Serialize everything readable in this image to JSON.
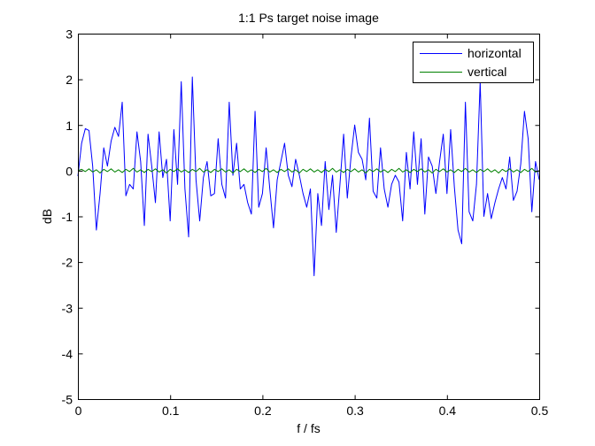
{
  "chart_data": {
    "type": "line",
    "title": "1:1 Ps target noise image",
    "xlabel": "f / fs",
    "ylabel": "dB",
    "xlim": [
      0,
      0.5
    ],
    "ylim": [
      -5,
      3
    ],
    "xticks": [
      0,
      0.1,
      0.2,
      0.3,
      0.4,
      0.5
    ],
    "yticks": [
      -5,
      -4,
      -3,
      -2,
      -1,
      0,
      1,
      2,
      3
    ],
    "xtick_labels": [
      "0",
      "0.1",
      "0.2",
      "0.3",
      "0.4",
      "0.5"
    ],
    "ytick_labels": [
      "-5",
      "-4",
      "-3",
      "-2",
      "-1",
      "0",
      "1",
      "2",
      "3"
    ],
    "grid": false,
    "legend_position": "top-right",
    "series": [
      {
        "name": "horizontal",
        "color": "#0000ff",
        "points": [
          [
            0.0,
            -0.12
          ],
          [
            0.004,
            0.6
          ],
          [
            0.008,
            0.92
          ],
          [
            0.012,
            0.88
          ],
          [
            0.016,
            0.1
          ],
          [
            0.02,
            -1.3
          ],
          [
            0.024,
            -0.5
          ],
          [
            0.028,
            0.5
          ],
          [
            0.032,
            0.1
          ],
          [
            0.036,
            0.65
          ],
          [
            0.04,
            0.95
          ],
          [
            0.044,
            0.75
          ],
          [
            0.048,
            1.5
          ],
          [
            0.052,
            -0.55
          ],
          [
            0.056,
            -0.3
          ],
          [
            0.06,
            -0.4
          ],
          [
            0.064,
            0.85
          ],
          [
            0.068,
            0.2
          ],
          [
            0.072,
            -1.2
          ],
          [
            0.076,
            0.8
          ],
          [
            0.08,
            0.1
          ],
          [
            0.084,
            -0.7
          ],
          [
            0.088,
            0.85
          ],
          [
            0.092,
            -0.15
          ],
          [
            0.096,
            0.25
          ],
          [
            0.1,
            -1.1
          ],
          [
            0.104,
            0.9
          ],
          [
            0.108,
            -0.3
          ],
          [
            0.112,
            1.95
          ],
          [
            0.116,
            -0.4
          ],
          [
            0.12,
            -1.45
          ],
          [
            0.124,
            2.05
          ],
          [
            0.128,
            -0.2
          ],
          [
            0.132,
            -1.1
          ],
          [
            0.136,
            -0.15
          ],
          [
            0.14,
            0.2
          ],
          [
            0.144,
            -0.55
          ],
          [
            0.148,
            -0.5
          ],
          [
            0.152,
            0.7
          ],
          [
            0.156,
            -0.3
          ],
          [
            0.16,
            -0.6
          ],
          [
            0.164,
            1.5
          ],
          [
            0.168,
            -0.1
          ],
          [
            0.172,
            0.6
          ],
          [
            0.176,
            -0.4
          ],
          [
            0.18,
            -0.3
          ],
          [
            0.184,
            -0.7
          ],
          [
            0.188,
            -0.95
          ],
          [
            0.192,
            1.3
          ],
          [
            0.196,
            -0.8
          ],
          [
            0.2,
            -0.5
          ],
          [
            0.204,
            0.5
          ],
          [
            0.208,
            -0.4
          ],
          [
            0.212,
            -1.25
          ],
          [
            0.216,
            -0.2
          ],
          [
            0.22,
            0.2
          ],
          [
            0.224,
            0.6
          ],
          [
            0.228,
            -0.1
          ],
          [
            0.232,
            -0.35
          ],
          [
            0.236,
            0.25
          ],
          [
            0.24,
            -0.1
          ],
          [
            0.244,
            -0.5
          ],
          [
            0.248,
            -0.8
          ],
          [
            0.252,
            -0.4
          ],
          [
            0.256,
            -2.3
          ],
          [
            0.26,
            -0.5
          ],
          [
            0.264,
            -1.2
          ],
          [
            0.268,
            0.2
          ],
          [
            0.272,
            -0.85
          ],
          [
            0.276,
            -0.1
          ],
          [
            0.28,
            -1.35
          ],
          [
            0.284,
            -0.3
          ],
          [
            0.288,
            0.8
          ],
          [
            0.292,
            -0.6
          ],
          [
            0.296,
            0.3
          ],
          [
            0.3,
            1.0
          ],
          [
            0.304,
            0.4
          ],
          [
            0.308,
            0.25
          ],
          [
            0.312,
            -0.2
          ],
          [
            0.316,
            1.15
          ],
          [
            0.32,
            -0.45
          ],
          [
            0.324,
            -0.6
          ],
          [
            0.328,
            0.5
          ],
          [
            0.332,
            -0.4
          ],
          [
            0.336,
            -0.8
          ],
          [
            0.34,
            -0.3
          ],
          [
            0.344,
            -0.1
          ],
          [
            0.348,
            -0.25
          ],
          [
            0.352,
            -1.1
          ],
          [
            0.356,
            0.4
          ],
          [
            0.36,
            -0.4
          ],
          [
            0.364,
            0.85
          ],
          [
            0.368,
            -0.3
          ],
          [
            0.372,
            0.7
          ],
          [
            0.376,
            -0.95
          ],
          [
            0.38,
            0.3
          ],
          [
            0.384,
            0.1
          ],
          [
            0.388,
            -0.5
          ],
          [
            0.392,
            0.2
          ],
          [
            0.396,
            0.8
          ],
          [
            0.4,
            -0.5
          ],
          [
            0.404,
            0.9
          ],
          [
            0.408,
            -0.35
          ],
          [
            0.412,
            -1.3
          ],
          [
            0.416,
            -1.6
          ],
          [
            0.42,
            1.5
          ],
          [
            0.424,
            -0.9
          ],
          [
            0.428,
            -1.1
          ],
          [
            0.432,
            -0.3
          ],
          [
            0.436,
            1.95
          ],
          [
            0.44,
            -1.0
          ],
          [
            0.444,
            -0.5
          ],
          [
            0.448,
            -1.05
          ],
          [
            0.452,
            -0.7
          ],
          [
            0.456,
            -0.4
          ],
          [
            0.46,
            -0.15
          ],
          [
            0.464,
            -0.4
          ],
          [
            0.468,
            0.3
          ],
          [
            0.472,
            -0.65
          ],
          [
            0.476,
            -0.45
          ],
          [
            0.48,
            0.15
          ],
          [
            0.484,
            1.3
          ],
          [
            0.488,
            0.7
          ],
          [
            0.492,
            -0.9
          ],
          [
            0.496,
            0.2
          ],
          [
            0.5,
            -0.2
          ]
        ]
      },
      {
        "name": "vertical",
        "color": "#008000",
        "points": [
          [
            0.0,
            0.0
          ],
          [
            0.004,
            0.03
          ],
          [
            0.008,
            -0.02
          ],
          [
            0.012,
            0.04
          ],
          [
            0.016,
            -0.03
          ],
          [
            0.02,
            0.02
          ],
          [
            0.024,
            -0.05
          ],
          [
            0.028,
            0.03
          ],
          [
            0.032,
            -0.02
          ],
          [
            0.036,
            0.04
          ],
          [
            0.04,
            -0.03
          ],
          [
            0.044,
            0.02
          ],
          [
            0.048,
            -0.04
          ],
          [
            0.052,
            0.03
          ],
          [
            0.056,
            -0.02
          ],
          [
            0.06,
            0.05
          ],
          [
            0.064,
            -0.03
          ],
          [
            0.068,
            0.02
          ],
          [
            0.072,
            -0.04
          ],
          [
            0.076,
            0.03
          ],
          [
            0.08,
            -0.02
          ],
          [
            0.084,
            0.04
          ],
          [
            0.088,
            -0.03
          ],
          [
            0.092,
            0.02
          ],
          [
            0.096,
            -0.05
          ],
          [
            0.1,
            0.03
          ],
          [
            0.104,
            -0.02
          ],
          [
            0.108,
            0.04
          ],
          [
            0.112,
            -0.03
          ],
          [
            0.116,
            0.02
          ],
          [
            0.12,
            -0.04
          ],
          [
            0.124,
            0.03
          ],
          [
            0.128,
            -0.02
          ],
          [
            0.132,
            0.05
          ],
          [
            0.136,
            -0.03
          ],
          [
            0.14,
            0.02
          ],
          [
            0.144,
            -0.04
          ],
          [
            0.148,
            0.03
          ],
          [
            0.152,
            -0.02
          ],
          [
            0.156,
            0.04
          ],
          [
            0.16,
            -0.03
          ],
          [
            0.164,
            0.02
          ],
          [
            0.168,
            -0.05
          ],
          [
            0.172,
            0.03
          ],
          [
            0.176,
            -0.02
          ],
          [
            0.18,
            0.04
          ],
          [
            0.184,
            -0.03
          ],
          [
            0.188,
            0.02
          ],
          [
            0.192,
            -0.04
          ],
          [
            0.196,
            0.03
          ],
          [
            0.2,
            -0.02
          ],
          [
            0.204,
            0.05
          ],
          [
            0.208,
            -0.03
          ],
          [
            0.212,
            0.02
          ],
          [
            0.216,
            -0.04
          ],
          [
            0.22,
            0.03
          ],
          [
            0.224,
            -0.02
          ],
          [
            0.228,
            0.04
          ],
          [
            0.232,
            -0.03
          ],
          [
            0.236,
            0.02
          ],
          [
            0.24,
            -0.05
          ],
          [
            0.244,
            0.03
          ],
          [
            0.248,
            -0.02
          ],
          [
            0.252,
            0.04
          ],
          [
            0.256,
            -0.03
          ],
          [
            0.26,
            0.02
          ],
          [
            0.264,
            -0.04
          ],
          [
            0.268,
            0.03
          ],
          [
            0.272,
            -0.02
          ],
          [
            0.276,
            0.05
          ],
          [
            0.28,
            -0.03
          ],
          [
            0.284,
            0.02
          ],
          [
            0.288,
            -0.04
          ],
          [
            0.292,
            0.03
          ],
          [
            0.296,
            -0.02
          ],
          [
            0.3,
            0.04
          ],
          [
            0.304,
            -0.03
          ],
          [
            0.308,
            0.02
          ],
          [
            0.312,
            -0.05
          ],
          [
            0.316,
            0.03
          ],
          [
            0.32,
            -0.02
          ],
          [
            0.324,
            0.04
          ],
          [
            0.328,
            -0.03
          ],
          [
            0.332,
            0.02
          ],
          [
            0.336,
            -0.04
          ],
          [
            0.34,
            0.03
          ],
          [
            0.344,
            -0.02
          ],
          [
            0.348,
            0.05
          ],
          [
            0.352,
            -0.03
          ],
          [
            0.356,
            0.02
          ],
          [
            0.36,
            -0.04
          ],
          [
            0.364,
            0.03
          ],
          [
            0.368,
            -0.02
          ],
          [
            0.372,
            0.04
          ],
          [
            0.376,
            -0.03
          ],
          [
            0.38,
            0.02
          ],
          [
            0.384,
            -0.05
          ],
          [
            0.388,
            0.03
          ],
          [
            0.392,
            -0.02
          ],
          [
            0.396,
            0.04
          ],
          [
            0.4,
            -0.03
          ],
          [
            0.404,
            0.02
          ],
          [
            0.408,
            -0.04
          ],
          [
            0.412,
            0.03
          ],
          [
            0.416,
            -0.02
          ],
          [
            0.42,
            0.05
          ],
          [
            0.424,
            -0.03
          ],
          [
            0.428,
            0.02
          ],
          [
            0.432,
            -0.04
          ],
          [
            0.436,
            0.03
          ],
          [
            0.44,
            -0.02
          ],
          [
            0.444,
            0.04
          ],
          [
            0.448,
            -0.03
          ],
          [
            0.452,
            0.02
          ],
          [
            0.456,
            -0.05
          ],
          [
            0.46,
            0.03
          ],
          [
            0.464,
            -0.02
          ],
          [
            0.468,
            0.04
          ],
          [
            0.472,
            -0.03
          ],
          [
            0.476,
            0.02
          ],
          [
            0.48,
            -0.04
          ],
          [
            0.484,
            0.03
          ],
          [
            0.488,
            -0.02
          ],
          [
            0.492,
            0.05
          ],
          [
            0.496,
            -0.03
          ],
          [
            0.5,
            0.0
          ]
        ]
      }
    ]
  }
}
